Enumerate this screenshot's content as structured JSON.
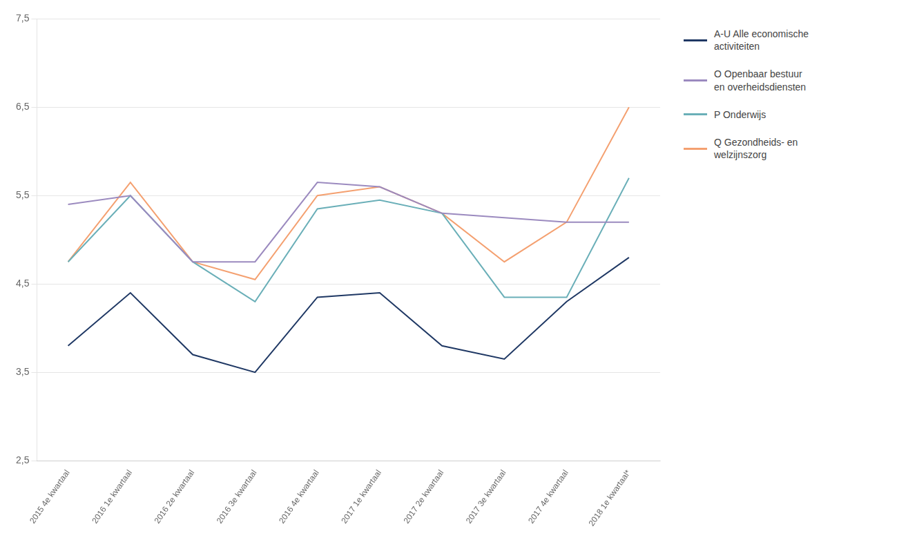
{
  "chart_data": {
    "type": "line",
    "categories": [
      "2015 4e kwartaal",
      "2016 1e kwartaal",
      "2016 2e kwartaal",
      "2016 3e kwartaal",
      "2016 4e kwartaal",
      "2017 1e kwartaal",
      "2017 2e kwartaal",
      "2017 3e kwartaal",
      "2017 4e kwartaal",
      "2018 1e kwartaal*"
    ],
    "series": [
      {
        "name": "A-U Alle economische\nactiviteiten",
        "color": "#1f3864",
        "values": [
          3.8,
          4.4,
          3.7,
          3.5,
          4.35,
          4.4,
          3.8,
          3.65,
          4.3,
          4.8
        ]
      },
      {
        "name": "O Openbaar bestuur\nen overheidsdiensten",
        "color": "#9b8abf",
        "values": [
          5.4,
          5.5,
          4.75,
          4.75,
          5.65,
          5.6,
          5.3,
          5.25,
          5.2,
          5.2
        ]
      },
      {
        "name": "P Onderwijs",
        "color": "#6aafb8",
        "values": [
          4.75,
          5.5,
          4.75,
          4.3,
          5.35,
          5.45,
          5.3,
          4.35,
          4.35,
          5.7
        ]
      },
      {
        "name": "Q Gezondheids- en\nwelzijnszorg",
        "color": "#f4a070",
        "values": [
          4.75,
          5.65,
          4.75,
          4.55,
          5.5,
          5.6,
          5.3,
          4.75,
          5.2,
          6.5
        ]
      }
    ],
    "ylim": [
      2.5,
      7.5
    ],
    "yticks": [
      {
        "value": 2.5,
        "label": "2,5"
      },
      {
        "value": 3.5,
        "label": "3,5"
      },
      {
        "value": 4.5,
        "label": "4,5"
      },
      {
        "value": 5.5,
        "label": "5,5"
      },
      {
        "value": 6.5,
        "label": "6,5"
      },
      {
        "value": 7.5,
        "label": "7,5"
      }
    ],
    "grid": true,
    "legend": "right"
  }
}
